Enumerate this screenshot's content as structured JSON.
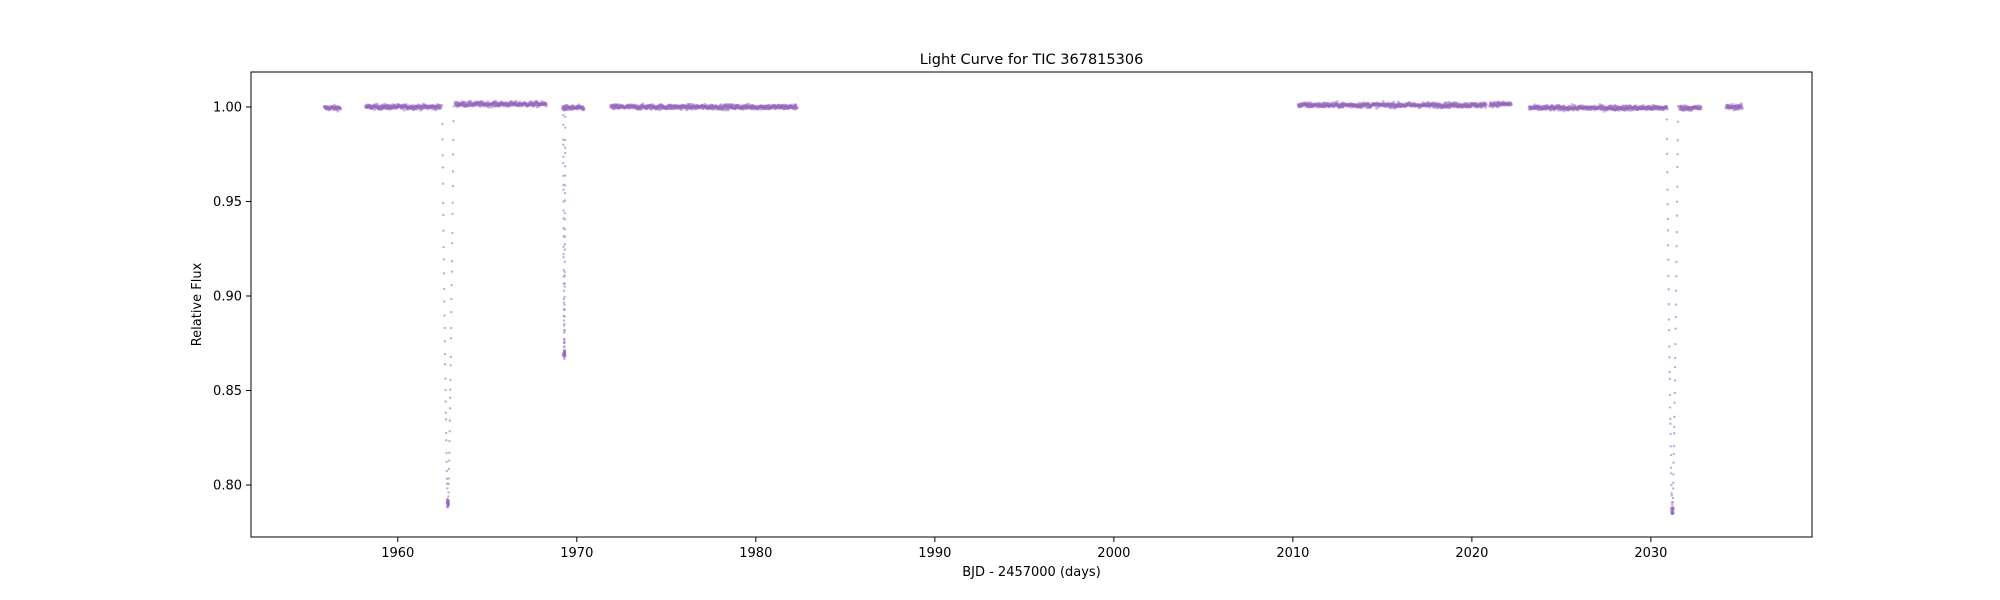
{
  "chart_data": {
    "type": "scatter",
    "title": "Light Curve for TIC 367815306",
    "xlabel": "BJD - 2457000 (days)",
    "ylabel": "Relative Flux",
    "xlim": [
      1951.8,
      2039.0
    ],
    "ylim": [
      0.7725,
      1.0185
    ],
    "xticks": [
      1960,
      1970,
      1980,
      1990,
      2000,
      2010,
      2020,
      2030
    ],
    "xtick_labels": [
      "1960",
      "1970",
      "1980",
      "1990",
      "2000",
      "2010",
      "2020",
      "2030"
    ],
    "yticks": [
      0.8,
      0.85,
      0.9,
      0.95,
      1.0
    ],
    "ytick_labels": [
      "0.80",
      "0.85",
      "0.90",
      "0.95",
      "1.00"
    ],
    "grid": false,
    "marker_color": "#9467bd",
    "segments": [
      {
        "x_start": 1955.9,
        "x_end": 1956.8,
        "flux": 0.9995
      },
      {
        "x_start": 1958.2,
        "x_end": 1962.4,
        "flux": 1.0
      },
      {
        "x_start": 1963.2,
        "x_end": 1968.3,
        "flux": 1.0015
      },
      {
        "x_start": 1969.2,
        "x_end": 1970.4,
        "flux": 0.9995
      },
      {
        "x_start": 1971.9,
        "x_end": 1982.3,
        "flux": 1.0
      },
      {
        "x_start": 2010.3,
        "x_end": 2020.8,
        "flux": 1.001
      },
      {
        "x_start": 2021.0,
        "x_end": 2022.2,
        "flux": 1.0015
      },
      {
        "x_start": 2023.2,
        "x_end": 2030.9,
        "flux": 0.9995
      },
      {
        "x_start": 2031.6,
        "x_end": 2032.8,
        "flux": 0.9995
      },
      {
        "x_start": 2034.2,
        "x_end": 2035.1,
        "flux": 1.0
      }
    ],
    "eclipses": [
      {
        "center": 1962.8,
        "min_flux": 0.788,
        "half_width": 0.32
      },
      {
        "center": 1969.3,
        "min_flux": 0.868,
        "half_width": 0.06
      },
      {
        "center": 2031.2,
        "min_flux": 0.785,
        "half_width": 0.32
      }
    ]
  }
}
